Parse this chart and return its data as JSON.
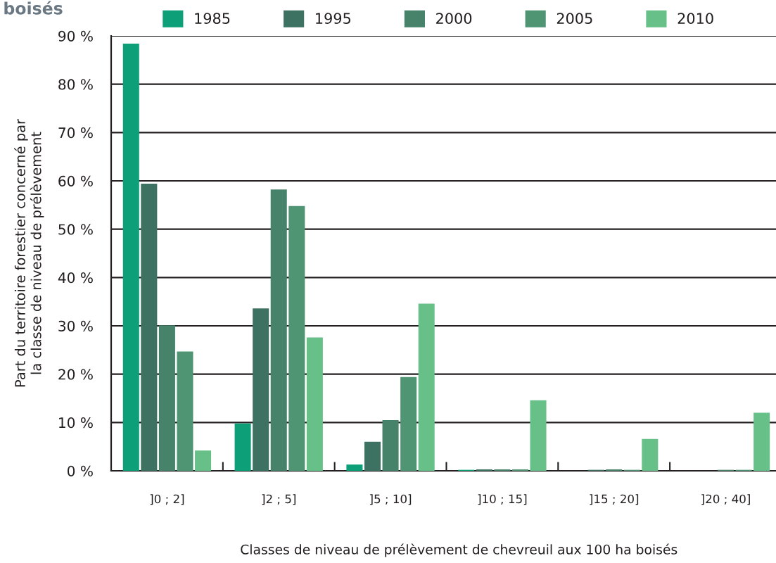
{
  "chart_data": {
    "type": "bar",
    "title": "boisés",
    "xlabel": "Classes de niveau de prélèvement de chevreuil aux 100 ha boisés",
    "ylabel": "Part du territoire forestier concerné par\nla classe de niveau de prélèvement",
    "categories": [
      "]0 ; 2]",
      "]2 ; 5]",
      "]5 ; 10]",
      "]10 ; 15]",
      "]15 ; 20]",
      "]20 ; 40]"
    ],
    "series": [
      {
        "name": "1985",
        "color": "#0da078",
        "values": [
          88.4,
          9.8,
          1.3,
          0.2,
          0,
          0
        ]
      },
      {
        "name": "1995",
        "color": "#3d7161",
        "values": [
          59.4,
          33.6,
          6.0,
          0.3,
          0.2,
          0
        ]
      },
      {
        "name": "2000",
        "color": "#46836a",
        "values": [
          30.1,
          58.2,
          10.5,
          0.3,
          0.3,
          0.2
        ]
      },
      {
        "name": "2005",
        "color": "#4f9573",
        "values": [
          24.7,
          54.8,
          19.4,
          0.3,
          0.2,
          0.2
        ]
      },
      {
        "name": "2010",
        "color": "#66c088",
        "values": [
          4.2,
          27.6,
          34.6,
          14.6,
          6.6,
          12.0
        ]
      }
    ],
    "ylim": [
      0,
      90
    ],
    "yticks": [
      {
        "value": 0,
        "label": "0 %"
      },
      {
        "value": 10,
        "label": "10 %"
      },
      {
        "value": 20,
        "label": "20 %"
      },
      {
        "value": 30,
        "label": "30 %"
      },
      {
        "value": 40,
        "label": "40 %"
      },
      {
        "value": 50,
        "label": "50 %"
      },
      {
        "value": 60,
        "label": "60 %"
      },
      {
        "value": 70,
        "label": "70 %"
      },
      {
        "value": 80,
        "label": "80 %"
      },
      {
        "value": 90,
        "label": "90 %"
      }
    ],
    "grid": "y",
    "legend": "top"
  }
}
